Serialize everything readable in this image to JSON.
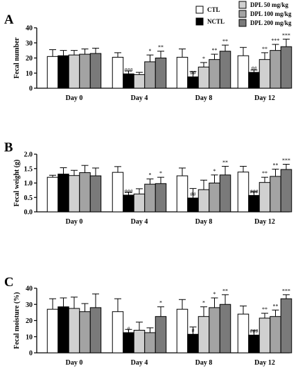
{
  "legend": {
    "entries": [
      {
        "key": "CTL",
        "label": "CTL",
        "color": "#ffffff"
      },
      {
        "key": "NCTL",
        "label": "NCTL",
        "color": "#000000"
      },
      {
        "key": "DPL50",
        "label": "DPL 50 mg/kg",
        "color": "#d0d0d0"
      },
      {
        "key": "DPL100",
        "label": "DPL 100 mg/kg",
        "color": "#a3a3a3"
      },
      {
        "key": "DPL200",
        "label": "DPL 200 mg/kg",
        "color": "#7a7a7a"
      }
    ]
  },
  "chart_data": [
    {
      "type": "bar",
      "panel": "A",
      "ylabel": "Fecal number",
      "ylim": [
        0,
        40
      ],
      "yticks": [
        "0",
        "10",
        "20",
        "30",
        "40"
      ],
      "categories": [
        "Day 0",
        "Day 4",
        "Day 8",
        "Day 12"
      ],
      "series": [
        {
          "name": "CTL",
          "values": [
            21,
            20.5,
            20.5,
            21.5
          ],
          "errors": [
            4.5,
            3,
            5.5,
            5.5
          ]
        },
        {
          "name": "NCTL",
          "values": [
            21.5,
            9.5,
            7.5,
            10.5
          ],
          "errors": [
            3.5,
            2,
            3.5,
            1.5
          ]
        },
        {
          "name": "DPL 50 mg/kg",
          "values": [
            22,
            9,
            14,
            19
          ],
          "errors": [
            3,
            1.5,
            3,
            4.5
          ]
        },
        {
          "name": "DPL 100 mg/kg",
          "values": [
            22.5,
            17.5,
            19,
            25
          ],
          "errors": [
            3.5,
            4.5,
            3.5,
            4
          ]
        },
        {
          "name": "DPL 200 mg/kg",
          "values": [
            23,
            20,
            24.5,
            27.5
          ],
          "errors": [
            3.5,
            4.5,
            4,
            5
          ]
        }
      ],
      "annotations": [
        [
          "",
          "",
          "",
          "",
          ""
        ],
        [
          "",
          "###",
          "",
          "*",
          "**"
        ],
        [
          "",
          "##",
          "*",
          "**",
          "**"
        ],
        [
          "",
          "##",
          "**",
          "***",
          "***"
        ]
      ]
    },
    {
      "type": "bar",
      "panel": "B",
      "ylabel": "Fecal weight (g)",
      "ylim": [
        0,
        2
      ],
      "yticks": [
        "0.0",
        "0.5",
        "1.0",
        "1.5",
        "2.0"
      ],
      "categories": [
        "Day 0",
        "Day 4",
        "Day 8",
        "Day 12"
      ],
      "series": [
        {
          "name": "CTL",
          "values": [
            1.2,
            1.37,
            1.25,
            1.38
          ],
          "errors": [
            0.07,
            0.2,
            0.27,
            0.2
          ]
        },
        {
          "name": "NCTL",
          "values": [
            1.31,
            0.58,
            0.48,
            0.57
          ],
          "errors": [
            0.22,
            0.1,
            0.33,
            0.13
          ]
        },
        {
          "name": "DPL 50 mg/kg",
          "values": [
            1.26,
            0.62,
            0.77,
            1.02
          ],
          "errors": [
            0.18,
            0.18,
            0.33,
            0.18
          ]
        },
        {
          "name": "DPL 100 mg/kg",
          "values": [
            1.36,
            0.96,
            1.0,
            1.23
          ],
          "errors": [
            0.25,
            0.18,
            0.28,
            0.25
          ]
        },
        {
          "name": "DPL 200 mg/kg",
          "values": [
            1.25,
            0.98,
            1.28,
            1.47
          ],
          "errors": [
            0.27,
            0.22,
            0.3,
            0.18
          ]
        }
      ],
      "annotations": [
        [
          "",
          "",
          "",
          "",
          ""
        ],
        [
          "",
          "###",
          "",
          "*",
          "*"
        ],
        [
          "",
          "##",
          "",
          "*",
          "**"
        ],
        [
          "",
          "###",
          "**",
          "**",
          "***"
        ]
      ]
    },
    {
      "type": "bar",
      "panel": "C",
      "ylabel": "Fecal moisture (%)",
      "ylim": [
        0,
        40
      ],
      "yticks": [
        "0",
        "10",
        "20",
        "30",
        "40"
      ],
      "categories": [
        "Day 0",
        "Day 4",
        "Day 8",
        "Day 12"
      ],
      "series": [
        {
          "name": "CTL",
          "values": [
            27,
            25.5,
            27,
            24
          ],
          "errors": [
            6.5,
            8,
            6,
            5
          ]
        },
        {
          "name": "NCTL",
          "values": [
            28.5,
            12.5,
            11.5,
            11
          ],
          "errors": [
            5.5,
            2,
            4.5,
            3
          ]
        },
        {
          "name": "DPL 50 mg/kg",
          "values": [
            27.5,
            14,
            22.5,
            21.5
          ],
          "errors": [
            7,
            5,
            6,
            3
          ]
        },
        {
          "name": "DPL 100 mg/kg",
          "values": [
            25.5,
            12.5,
            28,
            22.5
          ],
          "errors": [
            5,
            3,
            6,
            4
          ]
        },
        {
          "name": "DPL 200 mg/kg",
          "values": [
            28,
            22.5,
            30,
            33.5
          ],
          "errors": [
            8.5,
            6,
            6,
            2.5
          ]
        }
      ],
      "annotations": [
        [
          "",
          "",
          "",
          "",
          ""
        ],
        [
          "",
          "#",
          "",
          "",
          "*"
        ],
        [
          "",
          "#",
          "*",
          "*",
          "**"
        ],
        [
          "",
          "###",
          "**",
          "**",
          "***"
        ]
      ]
    }
  ]
}
